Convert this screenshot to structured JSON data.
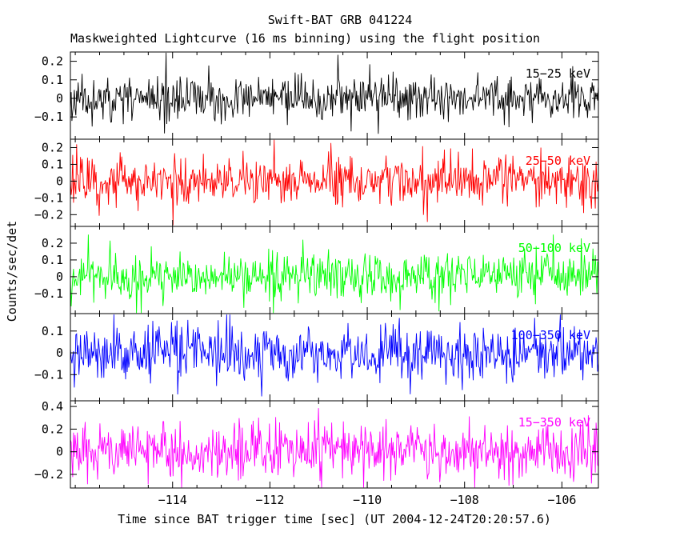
{
  "chart_data": {
    "type": "line",
    "title": "Swift-BAT GRB 041224",
    "subtitle": "Maskweighted Lightcurve (16 ms binning) using the flight position",
    "xlabel": "Time since BAT trigger time [sec] (UT 2004-12-24T20:20:57.6)",
    "ylabel": "Counts/sec/det",
    "xlim": [
      -116.1,
      -105.25
    ],
    "x_ticks": [
      -114,
      -112,
      -110,
      -108,
      -106
    ],
    "x_minor_tick_step": 0.5,
    "binning_seconds": 0.016,
    "n_points_per_panel": 680,
    "values_representation": "noise-like mask-weighted rates centered on 0; reproduced as seeded gaussian series with the per-panel sigma below",
    "legend_position": "inside-top-right-of-each-panel",
    "grid": false,
    "panels": [
      {
        "band": "15-25 keV",
        "color": "#000000",
        "ylim": [
          -0.22,
          0.25
        ],
        "yticks": [
          0.2,
          0.1,
          0,
          -0.1
        ],
        "noise": {
          "mean": 0,
          "sigma": 0.055,
          "seed": 11
        }
      },
      {
        "band": "25-50 keV",
        "color": "#ff0000",
        "ylim": [
          -0.27,
          0.25
        ],
        "yticks": [
          0.2,
          0.1,
          0,
          -0.1,
          -0.2
        ],
        "noise": {
          "mean": 0,
          "sigma": 0.07,
          "seed": 22
        }
      },
      {
        "band": "50-100 keV",
        "color": "#00ff00",
        "ylim": [
          -0.22,
          0.3
        ],
        "yticks": [
          0.2,
          0.1,
          0,
          -0.1
        ],
        "noise": {
          "mean": 0,
          "sigma": 0.065,
          "seed": 33
        }
      },
      {
        "band": "100-350 keV",
        "color": "#0000ff",
        "ylim": [
          -0.22,
          0.18
        ],
        "yticks": [
          0.1,
          0,
          -0.1
        ],
        "noise": {
          "mean": 0,
          "sigma": 0.06,
          "seed": 44
        }
      },
      {
        "band": "15-350 keV",
        "color": "#ff00ff",
        "ylim": [
          -0.32,
          0.45
        ],
        "yticks": [
          0.4,
          0.2,
          0,
          -0.2
        ],
        "noise": {
          "mean": 0,
          "sigma": 0.12,
          "seed": 55
        }
      }
    ]
  }
}
